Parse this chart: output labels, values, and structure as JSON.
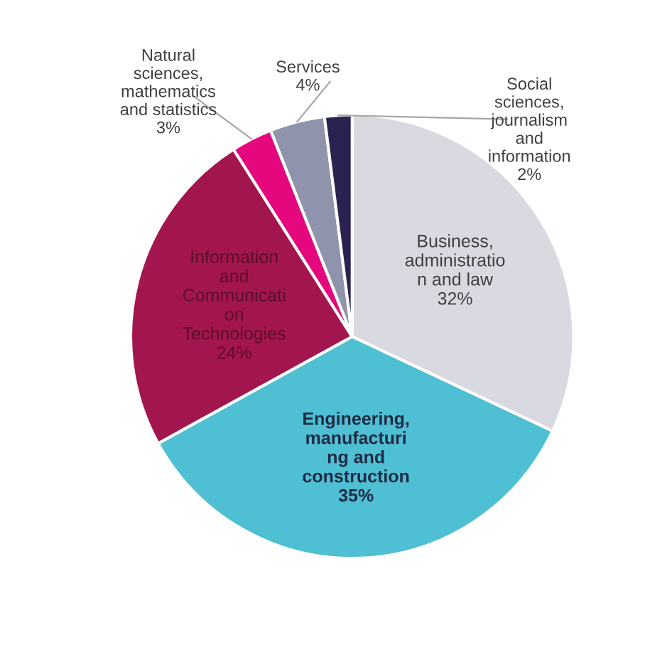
{
  "chart_data": {
    "type": "pie",
    "categories": [
      "Business,\nadministratio\nn and law",
      "Engineering,\nmanufacturi\nng and\nconstruction",
      "Information\nand\nCommunicati\non\nTechnologies",
      "Natural\nsciences,\nmathematics\nand statistics",
      "Services",
      "Social\nsciences,\njournalism\nand\ninformation"
    ],
    "values": [
      32,
      35,
      24,
      3,
      4,
      2
    ],
    "value_labels": [
      "32%",
      "35%",
      "24%",
      "3%",
      "4%",
      "2%"
    ],
    "colors": [
      "#d9d9e1",
      "#4fbfd3",
      "#a3154e",
      "#e5077e",
      "#8f93ab",
      "#2a2352"
    ],
    "legend": false
  }
}
